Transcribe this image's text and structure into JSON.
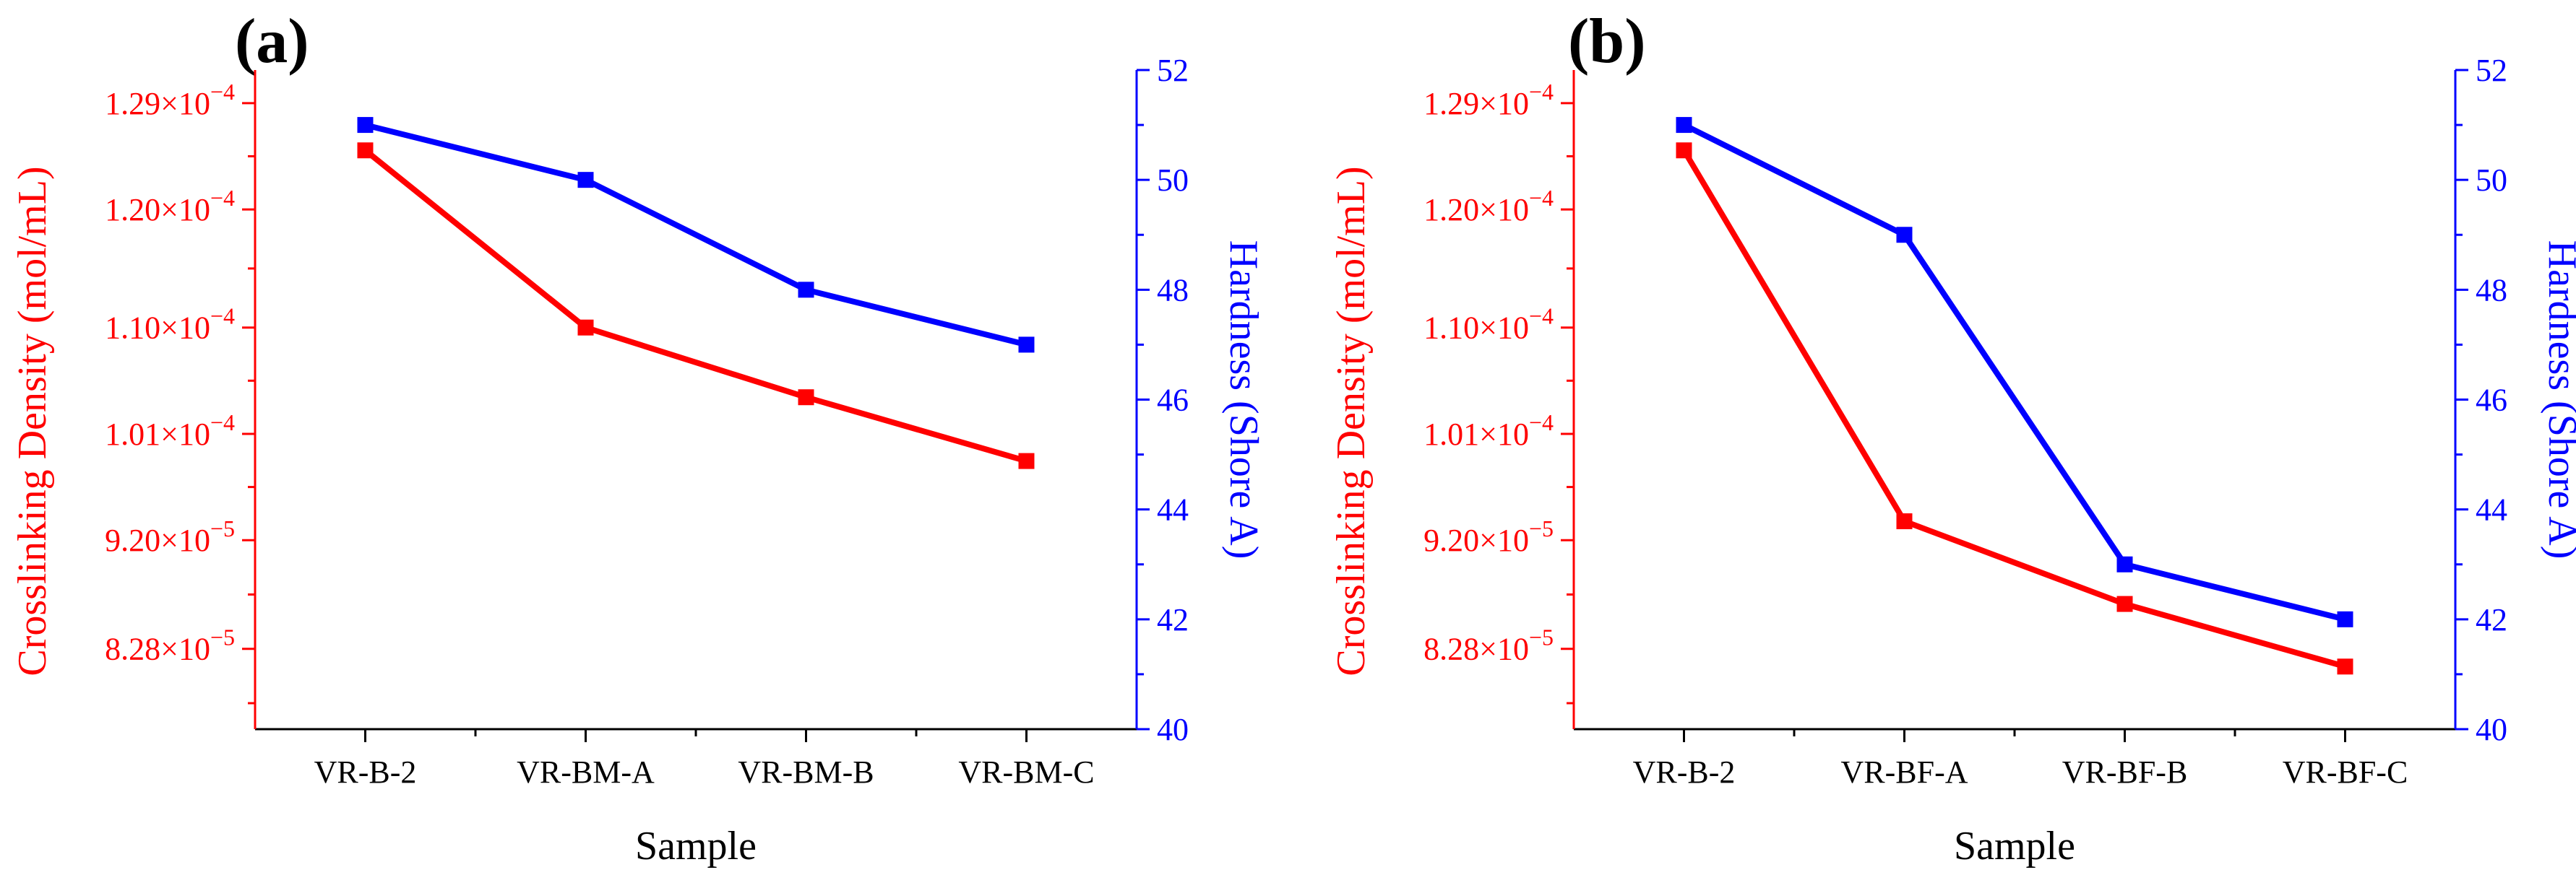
{
  "chart_data": [
    {
      "type": "line",
      "panel_label": "(a)",
      "xlabel": "Sample",
      "categories": [
        "VR-B-2",
        "VR-BM-A",
        "VR-BM-B",
        "VR-BM-C"
      ],
      "left_axis": {
        "label": "Crosslinking Density (mol/mL)",
        "color": "#ff0000",
        "ylim": [
          7.6e-05,
          0.0001318
        ],
        "ticks": [
          {
            "value": 8.28e-05,
            "mant": "8.28",
            "exp": "−5"
          },
          {
            "value": 9.2e-05,
            "mant": "9.20",
            "exp": "−5"
          },
          {
            "value": 0.000101,
            "mant": "1.01",
            "exp": "−4"
          },
          {
            "value": 0.00011,
            "mant": "1.10",
            "exp": "−4"
          },
          {
            "value": 0.00012,
            "mant": "1.20",
            "exp": "−4"
          },
          {
            "value": 0.000129,
            "mant": "1.29",
            "exp": "−4"
          }
        ]
      },
      "right_axis": {
        "label": "Hardness (Shore A)",
        "color": "#0000ff",
        "ylim": [
          40,
          52
        ],
        "ticks": [
          40,
          42,
          44,
          46,
          48,
          50,
          52
        ]
      },
      "series": [
        {
          "name": "Crosslinking Density",
          "axis": "left",
          "color": "#ff0000",
          "values": [
            0.000125,
            0.00011,
            0.0001041,
            9.87e-05
          ]
        },
        {
          "name": "Hardness",
          "axis": "right",
          "color": "#0000ff",
          "values": [
            51,
            50,
            48,
            47
          ]
        }
      ]
    },
    {
      "type": "line",
      "panel_label": "(b)",
      "xlabel": "Sample",
      "categories": [
        "VR-B-2",
        "VR-BF-A",
        "VR-BF-B",
        "VR-BF-C"
      ],
      "left_axis": {
        "label": "Crosslinking Density (mol/mL)",
        "color": "#ff0000",
        "ylim": [
          7.6e-05,
          0.0001318
        ],
        "ticks": [
          {
            "value": 8.28e-05,
            "mant": "8.28",
            "exp": "−5"
          },
          {
            "value": 9.2e-05,
            "mant": "9.20",
            "exp": "−5"
          },
          {
            "value": 0.000101,
            "mant": "1.01",
            "exp": "−4"
          },
          {
            "value": 0.00011,
            "mant": "1.10",
            "exp": "−4"
          },
          {
            "value": 0.00012,
            "mant": "1.20",
            "exp": "−4"
          },
          {
            "value": 0.000129,
            "mant": "1.29",
            "exp": "−4"
          }
        ]
      },
      "right_axis": {
        "label": "Hardness (Shore A)",
        "color": "#0000ff",
        "ylim": [
          40,
          52
        ],
        "ticks": [
          40,
          42,
          44,
          46,
          48,
          50,
          52
        ]
      },
      "series": [
        {
          "name": "Crosslinking Density",
          "axis": "left",
          "color": "#ff0000",
          "values": [
            0.000125,
            9.36e-05,
            8.66e-05,
            8.13e-05
          ]
        },
        {
          "name": "Hardness",
          "axis": "right",
          "color": "#0000ff",
          "values": [
            51,
            49,
            43,
            42
          ]
        }
      ]
    }
  ]
}
